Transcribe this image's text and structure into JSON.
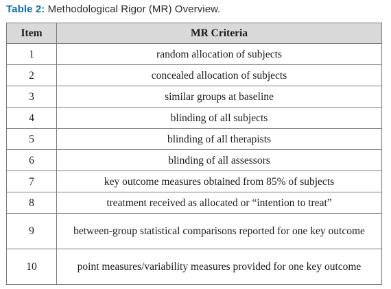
{
  "caption": {
    "label": "Table 2:",
    "text": " Methodological Rigor (MR) Overview."
  },
  "table": {
    "headers": [
      "Item",
      "MR Criteria"
    ],
    "rows": [
      {
        "item": "1",
        "criteria": "random allocation of subjects"
      },
      {
        "item": "2",
        "criteria": "concealed allocation of subjects"
      },
      {
        "item": "3",
        "criteria": "similar groups at baseline"
      },
      {
        "item": "4",
        "criteria": "blinding of all subjects"
      },
      {
        "item": "5",
        "criteria": "blinding of all therapists"
      },
      {
        "item": "6",
        "criteria": "blinding of all assessors"
      },
      {
        "item": "7",
        "criteria": "key outcome measures obtained from 85% of subjects"
      },
      {
        "item": "8",
        "criteria": "treatment received as allocated or “intention to treat”"
      },
      {
        "item": "9",
        "criteria": "between-group statistical comparisons reported for one key outcome"
      },
      {
        "item": "10",
        "criteria": "point measures/variability measures provided for one key outcome"
      }
    ]
  },
  "colors": {
    "caption_label": "#0e6fa8",
    "header_background": "#d9d9d9",
    "border": "#7a7a7a"
  }
}
